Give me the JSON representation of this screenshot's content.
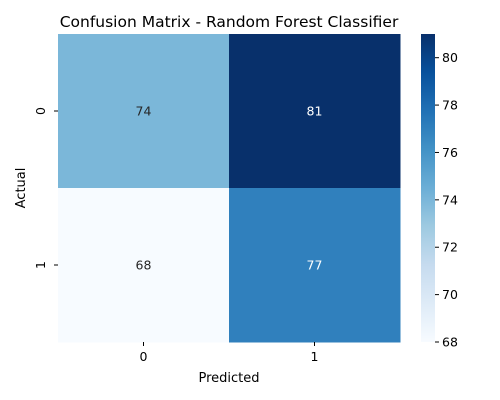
{
  "chart_data": {
    "type": "heatmap",
    "title": "Confusion Matrix - Random Forest Classifier",
    "xlabel": "Predicted",
    "ylabel": "Actual",
    "x_categories": [
      "0",
      "1"
    ],
    "y_categories": [
      "0",
      "1"
    ],
    "values": [
      [
        74,
        81
      ],
      [
        68,
        77
      ]
    ],
    "colorbar": {
      "range": [
        68,
        81
      ],
      "ticks": [
        68,
        70,
        72,
        74,
        76,
        78,
        80
      ],
      "colormap": "Blues"
    },
    "grid": false,
    "legend": "colorbar-right"
  }
}
